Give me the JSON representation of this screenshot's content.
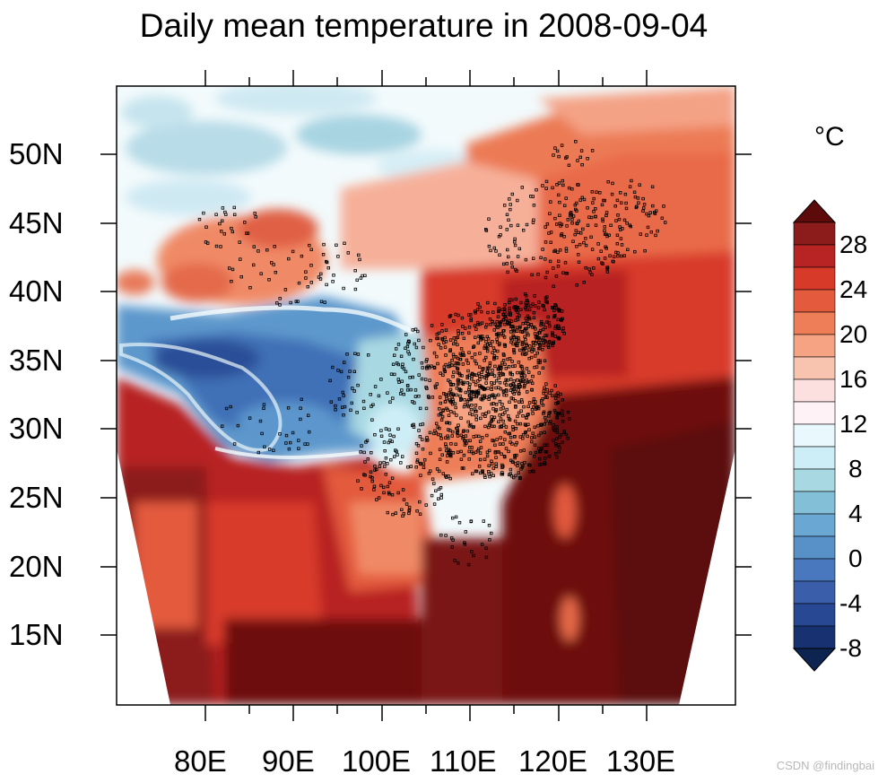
{
  "title": "Daily mean temperature in 2008-09-04",
  "lat_labels": [
    "50N",
    "45N",
    "40N",
    "35N",
    "30N",
    "25N",
    "20N",
    "15N"
  ],
  "lon_labels": [
    "80E",
    "90E",
    "100E",
    "110E",
    "120E",
    "130E"
  ],
  "colorbar": {
    "unit": "°C",
    "labels": [
      "28",
      "24",
      "20",
      "16",
      "12",
      "8",
      "4",
      "0",
      "-4",
      "-8"
    ],
    "colors": [
      "#5c0a0a",
      "#8c1c1c",
      "#b82424",
      "#d83a2a",
      "#e35a3c",
      "#ee7e58",
      "#f5a382",
      "#f8c4b0",
      "#fce0e0",
      "#fff2f6",
      "#e8f8fc",
      "#cdeef6",
      "#a8d8e2",
      "#83c0d8",
      "#6aa7d2",
      "#5890c8",
      "#4a78be",
      "#3a5eaa",
      "#284894",
      "#183170",
      "#0e2450"
    ]
  },
  "watermark": "CSDN @findingbai"
}
